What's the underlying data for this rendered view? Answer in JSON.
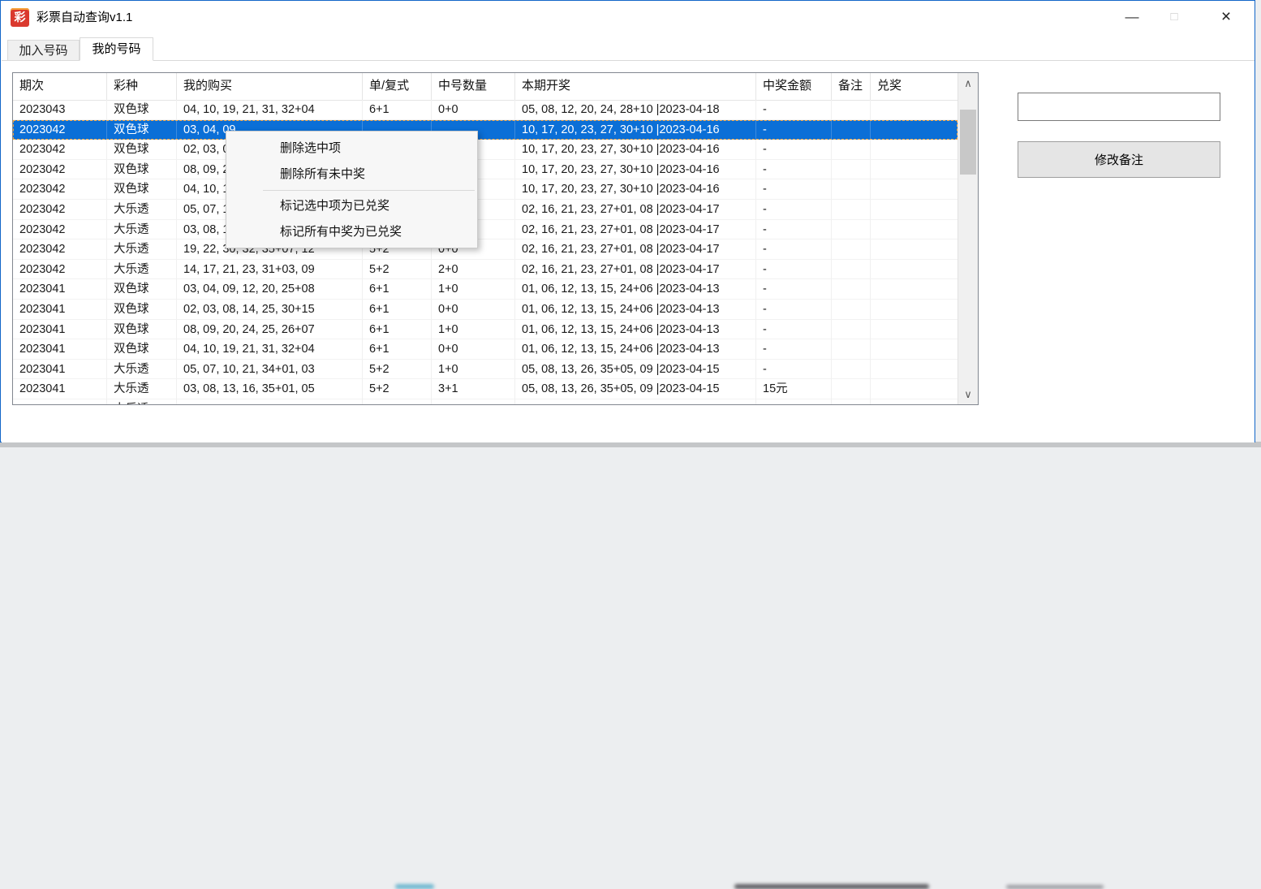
{
  "window": {
    "title": "彩票自动查询v1.1",
    "icon_glyph": "彩",
    "controls": {
      "minimize": "—",
      "maximize": "□",
      "close": "×"
    }
  },
  "tabs": [
    {
      "label": "加入号码",
      "active": false
    },
    {
      "label": "我的号码",
      "active": true
    }
  ],
  "table": {
    "columns": [
      "期次",
      "彩种",
      "我的购买",
      "单/复式",
      "中号数量",
      "本期开奖",
      "中奖金额",
      "备注",
      "兑奖"
    ],
    "selected_row_index": 1,
    "rows": [
      [
        "2023043",
        "双色球",
        "04, 10, 19, 21, 31, 32+04",
        "6+1",
        "0+0",
        "05, 08, 12, 20, 24, 28+10 |2023-04-18",
        "-",
        "",
        ""
      ],
      [
        "2023042",
        "双色球",
        "03, 04, 09",
        "",
        "",
        "10, 17, 20, 23, 27, 30+10 |2023-04-16",
        "-",
        "",
        ""
      ],
      [
        "2023042",
        "双色球",
        "02, 03, 08",
        "",
        "",
        "10, 17, 20, 23, 27, 30+10 |2023-04-16",
        "-",
        "",
        ""
      ],
      [
        "2023042",
        "双色球",
        "08, 09, 20",
        "",
        "",
        "10, 17, 20, 23, 27, 30+10 |2023-04-16",
        "-",
        "",
        ""
      ],
      [
        "2023042",
        "双色球",
        "04, 10, 19",
        "",
        "",
        "10, 17, 20, 23, 27, 30+10 |2023-04-16",
        "-",
        "",
        ""
      ],
      [
        "2023042",
        "大乐透",
        "05, 07, 10",
        "",
        "",
        "02, 16, 21, 23, 27+01, 08 |2023-04-17",
        "-",
        "",
        ""
      ],
      [
        "2023042",
        "大乐透",
        "03, 08, 13",
        "",
        "",
        "02, 16, 21, 23, 27+01, 08 |2023-04-17",
        "-",
        "",
        ""
      ],
      [
        "2023042",
        "大乐透",
        "19, 22, 30, 32, 35+07, 12",
        "5+2",
        "0+0",
        "02, 16, 21, 23, 27+01, 08 |2023-04-17",
        "-",
        "",
        ""
      ],
      [
        "2023042",
        "大乐透",
        "14, 17, 21, 23, 31+03, 09",
        "5+2",
        "2+0",
        "02, 16, 21, 23, 27+01, 08 |2023-04-17",
        "-",
        "",
        ""
      ],
      [
        "2023041",
        "双色球",
        "03, 04, 09, 12, 20, 25+08",
        "6+1",
        "1+0",
        "01, 06, 12, 13, 15, 24+06 |2023-04-13",
        "-",
        "",
        ""
      ],
      [
        "2023041",
        "双色球",
        "02, 03, 08, 14, 25, 30+15",
        "6+1",
        "0+0",
        "01, 06, 12, 13, 15, 24+06 |2023-04-13",
        "-",
        "",
        ""
      ],
      [
        "2023041",
        "双色球",
        "08, 09, 20, 24, 25, 26+07",
        "6+1",
        "1+0",
        "01, 06, 12, 13, 15, 24+06 |2023-04-13",
        "-",
        "",
        ""
      ],
      [
        "2023041",
        "双色球",
        "04, 10, 19, 21, 31, 32+04",
        "6+1",
        "0+0",
        "01, 06, 12, 13, 15, 24+06 |2023-04-13",
        "-",
        "",
        ""
      ],
      [
        "2023041",
        "大乐透",
        "05, 07, 10, 21, 34+01, 03",
        "5+2",
        "1+0",
        "05, 08, 13, 26, 35+05, 09 |2023-04-15",
        "-",
        "",
        ""
      ],
      [
        "2023041",
        "大乐透",
        "03, 08, 13, 16, 35+01, 05",
        "5+2",
        "3+1",
        "05, 08, 13, 26, 35+05, 09 |2023-04-15",
        "15元",
        "",
        ""
      ],
      [
        "",
        "大乐透",
        "",
        "",
        "",
        "",
        "",
        "",
        ""
      ]
    ]
  },
  "context_menu": {
    "items": [
      {
        "label": "删除选中项"
      },
      {
        "label": "删除所有未中奖"
      },
      {
        "separator": true
      },
      {
        "label": "标记选中项为已兑奖"
      },
      {
        "label": "标记所有中奖为已兑奖"
      }
    ]
  },
  "scrollbar": {
    "up_glyph": "∧",
    "down_glyph": "∨"
  },
  "side_panel": {
    "note_input_value": "",
    "modify_note_button": "修改备注"
  },
  "colors": {
    "selection_blue": "#0b6fd7",
    "focus_dash_orange": "#f0a23c",
    "window_border_blue": "#1266c8",
    "app_icon_red": "#da392e"
  }
}
